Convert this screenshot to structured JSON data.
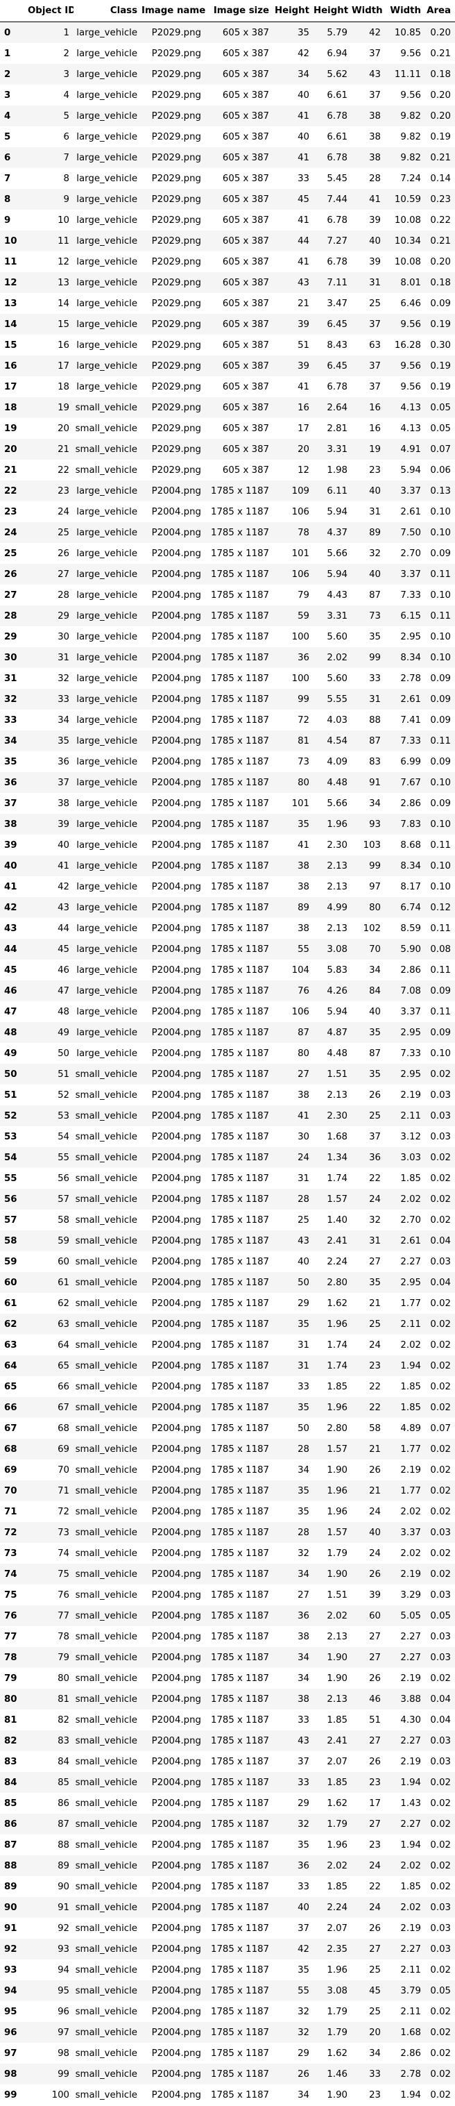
{
  "columns": [
    "",
    "Object ID",
    "Class",
    "Image name",
    "Image size",
    "Height",
    "Height",
    "Width",
    "Width",
    "Area"
  ],
  "rows": [
    [
      "0",
      "1",
      "large_vehicle",
      "P2029.png",
      "605 x 387",
      "35",
      "5.79",
      "42",
      "10.85",
      "0.20"
    ],
    [
      "1",
      "2",
      "large_vehicle",
      "P2029.png",
      "605 x 387",
      "42",
      "6.94",
      "37",
      "9.56",
      "0.21"
    ],
    [
      "2",
      "3",
      "large_vehicle",
      "P2029.png",
      "605 x 387",
      "34",
      "5.62",
      "43",
      "11.11",
      "0.18"
    ],
    [
      "3",
      "4",
      "large_vehicle",
      "P2029.png",
      "605 x 387",
      "40",
      "6.61",
      "37",
      "9.56",
      "0.20"
    ],
    [
      "4",
      "5",
      "large_vehicle",
      "P2029.png",
      "605 x 387",
      "41",
      "6.78",
      "38",
      "9.82",
      "0.20"
    ],
    [
      "5",
      "6",
      "large_vehicle",
      "P2029.png",
      "605 x 387",
      "40",
      "6.61",
      "38",
      "9.82",
      "0.19"
    ],
    [
      "6",
      "7",
      "large_vehicle",
      "P2029.png",
      "605 x 387",
      "41",
      "6.78",
      "38",
      "9.82",
      "0.21"
    ],
    [
      "7",
      "8",
      "large_vehicle",
      "P2029.png",
      "605 x 387",
      "33",
      "5.45",
      "28",
      "7.24",
      "0.14"
    ],
    [
      "8",
      "9",
      "large_vehicle",
      "P2029.png",
      "605 x 387",
      "45",
      "7.44",
      "41",
      "10.59",
      "0.23"
    ],
    [
      "9",
      "10",
      "large_vehicle",
      "P2029.png",
      "605 x 387",
      "41",
      "6.78",
      "39",
      "10.08",
      "0.22"
    ],
    [
      "10",
      "11",
      "large_vehicle",
      "P2029.png",
      "605 x 387",
      "44",
      "7.27",
      "40",
      "10.34",
      "0.21"
    ],
    [
      "11",
      "12",
      "large_vehicle",
      "P2029.png",
      "605 x 387",
      "41",
      "6.78",
      "39",
      "10.08",
      "0.20"
    ],
    [
      "12",
      "13",
      "large_vehicle",
      "P2029.png",
      "605 x 387",
      "43",
      "7.11",
      "31",
      "8.01",
      "0.18"
    ],
    [
      "13",
      "14",
      "large_vehicle",
      "P2029.png",
      "605 x 387",
      "21",
      "3.47",
      "25",
      "6.46",
      "0.09"
    ],
    [
      "14",
      "15",
      "large_vehicle",
      "P2029.png",
      "605 x 387",
      "39",
      "6.45",
      "37",
      "9.56",
      "0.19"
    ],
    [
      "15",
      "16",
      "large_vehicle",
      "P2029.png",
      "605 x 387",
      "51",
      "8.43",
      "63",
      "16.28",
      "0.30"
    ],
    [
      "16",
      "17",
      "large_vehicle",
      "P2029.png",
      "605 x 387",
      "39",
      "6.45",
      "37",
      "9.56",
      "0.19"
    ],
    [
      "17",
      "18",
      "large_vehicle",
      "P2029.png",
      "605 x 387",
      "41",
      "6.78",
      "37",
      "9.56",
      "0.19"
    ],
    [
      "18",
      "19",
      "small_vehicle",
      "P2029.png",
      "605 x 387",
      "16",
      "2.64",
      "16",
      "4.13",
      "0.05"
    ],
    [
      "19",
      "20",
      "small_vehicle",
      "P2029.png",
      "605 x 387",
      "17",
      "2.81",
      "16",
      "4.13",
      "0.05"
    ],
    [
      "20",
      "21",
      "small_vehicle",
      "P2029.png",
      "605 x 387",
      "20",
      "3.31",
      "19",
      "4.91",
      "0.07"
    ],
    [
      "21",
      "22",
      "small_vehicle",
      "P2029.png",
      "605 x 387",
      "12",
      "1.98",
      "23",
      "5.94",
      "0.06"
    ],
    [
      "22",
      "23",
      "large_vehicle",
      "P2004.png",
      "1785 x 1187",
      "109",
      "6.11",
      "40",
      "3.37",
      "0.13"
    ],
    [
      "23",
      "24",
      "large_vehicle",
      "P2004.png",
      "1785 x 1187",
      "106",
      "5.94",
      "31",
      "2.61",
      "0.10"
    ],
    [
      "24",
      "25",
      "large_vehicle",
      "P2004.png",
      "1785 x 1187",
      "78",
      "4.37",
      "89",
      "7.50",
      "0.10"
    ],
    [
      "25",
      "26",
      "large_vehicle",
      "P2004.png",
      "1785 x 1187",
      "101",
      "5.66",
      "32",
      "2.70",
      "0.09"
    ],
    [
      "26",
      "27",
      "large_vehicle",
      "P2004.png",
      "1785 x 1187",
      "106",
      "5.94",
      "40",
      "3.37",
      "0.11"
    ],
    [
      "27",
      "28",
      "large_vehicle",
      "P2004.png",
      "1785 x 1187",
      "79",
      "4.43",
      "87",
      "7.33",
      "0.10"
    ],
    [
      "28",
      "29",
      "large_vehicle",
      "P2004.png",
      "1785 x 1187",
      "59",
      "3.31",
      "73",
      "6.15",
      "0.11"
    ],
    [
      "29",
      "30",
      "large_vehicle",
      "P2004.png",
      "1785 x 1187",
      "100",
      "5.60",
      "35",
      "2.95",
      "0.10"
    ],
    [
      "30",
      "31",
      "large_vehicle",
      "P2004.png",
      "1785 x 1187",
      "36",
      "2.02",
      "99",
      "8.34",
      "0.10"
    ],
    [
      "31",
      "32",
      "large_vehicle",
      "P2004.png",
      "1785 x 1187",
      "100",
      "5.60",
      "33",
      "2.78",
      "0.09"
    ],
    [
      "32",
      "33",
      "large_vehicle",
      "P2004.png",
      "1785 x 1187",
      "99",
      "5.55",
      "31",
      "2.61",
      "0.09"
    ],
    [
      "33",
      "34",
      "large_vehicle",
      "P2004.png",
      "1785 x 1187",
      "72",
      "4.03",
      "88",
      "7.41",
      "0.09"
    ],
    [
      "34",
      "35",
      "large_vehicle",
      "P2004.png",
      "1785 x 1187",
      "81",
      "4.54",
      "87",
      "7.33",
      "0.11"
    ],
    [
      "35",
      "36",
      "large_vehicle",
      "P2004.png",
      "1785 x 1187",
      "73",
      "4.09",
      "83",
      "6.99",
      "0.09"
    ],
    [
      "36",
      "37",
      "large_vehicle",
      "P2004.png",
      "1785 x 1187",
      "80",
      "4.48",
      "91",
      "7.67",
      "0.10"
    ],
    [
      "37",
      "38",
      "large_vehicle",
      "P2004.png",
      "1785 x 1187",
      "101",
      "5.66",
      "34",
      "2.86",
      "0.09"
    ],
    [
      "38",
      "39",
      "large_vehicle",
      "P2004.png",
      "1785 x 1187",
      "35",
      "1.96",
      "93",
      "7.83",
      "0.10"
    ],
    [
      "39",
      "40",
      "large_vehicle",
      "P2004.png",
      "1785 x 1187",
      "41",
      "2.30",
      "103",
      "8.68",
      "0.11"
    ],
    [
      "40",
      "41",
      "large_vehicle",
      "P2004.png",
      "1785 x 1187",
      "38",
      "2.13",
      "99",
      "8.34",
      "0.10"
    ],
    [
      "41",
      "42",
      "large_vehicle",
      "P2004.png",
      "1785 x 1187",
      "38",
      "2.13",
      "97",
      "8.17",
      "0.10"
    ],
    [
      "42",
      "43",
      "large_vehicle",
      "P2004.png",
      "1785 x 1187",
      "89",
      "4.99",
      "80",
      "6.74",
      "0.12"
    ],
    [
      "43",
      "44",
      "large_vehicle",
      "P2004.png",
      "1785 x 1187",
      "38",
      "2.13",
      "102",
      "8.59",
      "0.11"
    ],
    [
      "44",
      "45",
      "large_vehicle",
      "P2004.png",
      "1785 x 1187",
      "55",
      "3.08",
      "70",
      "5.90",
      "0.08"
    ],
    [
      "45",
      "46",
      "large_vehicle",
      "P2004.png",
      "1785 x 1187",
      "104",
      "5.83",
      "34",
      "2.86",
      "0.11"
    ],
    [
      "46",
      "47",
      "large_vehicle",
      "P2004.png",
      "1785 x 1187",
      "76",
      "4.26",
      "84",
      "7.08",
      "0.09"
    ],
    [
      "47",
      "48",
      "large_vehicle",
      "P2004.png",
      "1785 x 1187",
      "106",
      "5.94",
      "40",
      "3.37",
      "0.11"
    ],
    [
      "48",
      "49",
      "large_vehicle",
      "P2004.png",
      "1785 x 1187",
      "87",
      "4.87",
      "35",
      "2.95",
      "0.09"
    ],
    [
      "49",
      "50",
      "large_vehicle",
      "P2004.png",
      "1785 x 1187",
      "80",
      "4.48",
      "87",
      "7.33",
      "0.10"
    ],
    [
      "50",
      "51",
      "small_vehicle",
      "P2004.png",
      "1785 x 1187",
      "27",
      "1.51",
      "35",
      "2.95",
      "0.02"
    ],
    [
      "51",
      "52",
      "small_vehicle",
      "P2004.png",
      "1785 x 1187",
      "38",
      "2.13",
      "26",
      "2.19",
      "0.03"
    ],
    [
      "52",
      "53",
      "small_vehicle",
      "P2004.png",
      "1785 x 1187",
      "41",
      "2.30",
      "25",
      "2.11",
      "0.03"
    ],
    [
      "53",
      "54",
      "small_vehicle",
      "P2004.png",
      "1785 x 1187",
      "30",
      "1.68",
      "37",
      "3.12",
      "0.03"
    ],
    [
      "54",
      "55",
      "small_vehicle",
      "P2004.png",
      "1785 x 1187",
      "24",
      "1.34",
      "36",
      "3.03",
      "0.02"
    ],
    [
      "55",
      "56",
      "small_vehicle",
      "P2004.png",
      "1785 x 1187",
      "31",
      "1.74",
      "22",
      "1.85",
      "0.02"
    ],
    [
      "56",
      "57",
      "small_vehicle",
      "P2004.png",
      "1785 x 1187",
      "28",
      "1.57",
      "24",
      "2.02",
      "0.02"
    ],
    [
      "57",
      "58",
      "small_vehicle",
      "P2004.png",
      "1785 x 1187",
      "25",
      "1.40",
      "32",
      "2.70",
      "0.02"
    ],
    [
      "58",
      "59",
      "small_vehicle",
      "P2004.png",
      "1785 x 1187",
      "43",
      "2.41",
      "31",
      "2.61",
      "0.04"
    ],
    [
      "59",
      "60",
      "small_vehicle",
      "P2004.png",
      "1785 x 1187",
      "40",
      "2.24",
      "27",
      "2.27",
      "0.03"
    ],
    [
      "60",
      "61",
      "small_vehicle",
      "P2004.png",
      "1785 x 1187",
      "50",
      "2.80",
      "35",
      "2.95",
      "0.04"
    ],
    [
      "61",
      "62",
      "small_vehicle",
      "P2004.png",
      "1785 x 1187",
      "29",
      "1.62",
      "21",
      "1.77",
      "0.02"
    ],
    [
      "62",
      "63",
      "small_vehicle",
      "P2004.png",
      "1785 x 1187",
      "35",
      "1.96",
      "25",
      "2.11",
      "0.02"
    ],
    [
      "63",
      "64",
      "small_vehicle",
      "P2004.png",
      "1785 x 1187",
      "31",
      "1.74",
      "24",
      "2.02",
      "0.02"
    ],
    [
      "64",
      "65",
      "small_vehicle",
      "P2004.png",
      "1785 x 1187",
      "31",
      "1.74",
      "23",
      "1.94",
      "0.02"
    ],
    [
      "65",
      "66",
      "small_vehicle",
      "P2004.png",
      "1785 x 1187",
      "33",
      "1.85",
      "22",
      "1.85",
      "0.02"
    ],
    [
      "66",
      "67",
      "small_vehicle",
      "P2004.png",
      "1785 x 1187",
      "35",
      "1.96",
      "22",
      "1.85",
      "0.02"
    ],
    [
      "67",
      "68",
      "small_vehicle",
      "P2004.png",
      "1785 x 1187",
      "50",
      "2.80",
      "58",
      "4.89",
      "0.07"
    ],
    [
      "68",
      "69",
      "small_vehicle",
      "P2004.png",
      "1785 x 1187",
      "28",
      "1.57",
      "21",
      "1.77",
      "0.02"
    ],
    [
      "69",
      "70",
      "small_vehicle",
      "P2004.png",
      "1785 x 1187",
      "34",
      "1.90",
      "26",
      "2.19",
      "0.02"
    ],
    [
      "70",
      "71",
      "small_vehicle",
      "P2004.png",
      "1785 x 1187",
      "35",
      "1.96",
      "21",
      "1.77",
      "0.02"
    ],
    [
      "71",
      "72",
      "small_vehicle",
      "P2004.png",
      "1785 x 1187",
      "35",
      "1.96",
      "24",
      "2.02",
      "0.02"
    ],
    [
      "72",
      "73",
      "small_vehicle",
      "P2004.png",
      "1785 x 1187",
      "28",
      "1.57",
      "40",
      "3.37",
      "0.03"
    ],
    [
      "73",
      "74",
      "small_vehicle",
      "P2004.png",
      "1785 x 1187",
      "32",
      "1.79",
      "24",
      "2.02",
      "0.02"
    ],
    [
      "74",
      "75",
      "small_vehicle",
      "P2004.png",
      "1785 x 1187",
      "34",
      "1.90",
      "26",
      "2.19",
      "0.02"
    ],
    [
      "75",
      "76",
      "small_vehicle",
      "P2004.png",
      "1785 x 1187",
      "27",
      "1.51",
      "39",
      "3.29",
      "0.03"
    ],
    [
      "76",
      "77",
      "small_vehicle",
      "P2004.png",
      "1785 x 1187",
      "36",
      "2.02",
      "60",
      "5.05",
      "0.05"
    ],
    [
      "77",
      "78",
      "small_vehicle",
      "P2004.png",
      "1785 x 1187",
      "38",
      "2.13",
      "27",
      "2.27",
      "0.03"
    ],
    [
      "78",
      "79",
      "small_vehicle",
      "P2004.png",
      "1785 x 1187",
      "34",
      "1.90",
      "27",
      "2.27",
      "0.03"
    ],
    [
      "79",
      "80",
      "small_vehicle",
      "P2004.png",
      "1785 x 1187",
      "34",
      "1.90",
      "26",
      "2.19",
      "0.02"
    ],
    [
      "80",
      "81",
      "small_vehicle",
      "P2004.png",
      "1785 x 1187",
      "38",
      "2.13",
      "46",
      "3.88",
      "0.04"
    ],
    [
      "81",
      "82",
      "small_vehicle",
      "P2004.png",
      "1785 x 1187",
      "33",
      "1.85",
      "51",
      "4.30",
      "0.04"
    ],
    [
      "82",
      "83",
      "small_vehicle",
      "P2004.png",
      "1785 x 1187",
      "43",
      "2.41",
      "27",
      "2.27",
      "0.03"
    ],
    [
      "83",
      "84",
      "small_vehicle",
      "P2004.png",
      "1785 x 1187",
      "37",
      "2.07",
      "26",
      "2.19",
      "0.03"
    ],
    [
      "84",
      "85",
      "small_vehicle",
      "P2004.png",
      "1785 x 1187",
      "33",
      "1.85",
      "23",
      "1.94",
      "0.02"
    ],
    [
      "85",
      "86",
      "small_vehicle",
      "P2004.png",
      "1785 x 1187",
      "29",
      "1.62",
      "17",
      "1.43",
      "0.02"
    ],
    [
      "86",
      "87",
      "small_vehicle",
      "P2004.png",
      "1785 x 1187",
      "32",
      "1.79",
      "27",
      "2.27",
      "0.02"
    ],
    [
      "87",
      "88",
      "small_vehicle",
      "P2004.png",
      "1785 x 1187",
      "35",
      "1.96",
      "23",
      "1.94",
      "0.02"
    ],
    [
      "88",
      "89",
      "small_vehicle",
      "P2004.png",
      "1785 x 1187",
      "36",
      "2.02",
      "24",
      "2.02",
      "0.02"
    ],
    [
      "89",
      "90",
      "small_vehicle",
      "P2004.png",
      "1785 x 1187",
      "33",
      "1.85",
      "22",
      "1.85",
      "0.02"
    ],
    [
      "90",
      "91",
      "small_vehicle",
      "P2004.png",
      "1785 x 1187",
      "40",
      "2.24",
      "24",
      "2.02",
      "0.03"
    ],
    [
      "91",
      "92",
      "small_vehicle",
      "P2004.png",
      "1785 x 1187",
      "37",
      "2.07",
      "26",
      "2.19",
      "0.03"
    ],
    [
      "92",
      "93",
      "small_vehicle",
      "P2004.png",
      "1785 x 1187",
      "42",
      "2.35",
      "27",
      "2.27",
      "0.03"
    ],
    [
      "93",
      "94",
      "small_vehicle",
      "P2004.png",
      "1785 x 1187",
      "35",
      "1.96",
      "25",
      "2.11",
      "0.02"
    ],
    [
      "94",
      "95",
      "small_vehicle",
      "P2004.png",
      "1785 x 1187",
      "55",
      "3.08",
      "45",
      "3.79",
      "0.05"
    ],
    [
      "95",
      "96",
      "small_vehicle",
      "P2004.png",
      "1785 x 1187",
      "32",
      "1.79",
      "25",
      "2.11",
      "0.02"
    ],
    [
      "96",
      "97",
      "small_vehicle",
      "P2004.png",
      "1785 x 1187",
      "32",
      "1.79",
      "20",
      "1.68",
      "0.02"
    ],
    [
      "97",
      "98",
      "small_vehicle",
      "P2004.png",
      "1785 x 1187",
      "29",
      "1.62",
      "34",
      "2.86",
      "0.02"
    ],
    [
      "98",
      "99",
      "small_vehicle",
      "P2004.png",
      "1785 x 1187",
      "26",
      "1.46",
      "33",
      "2.78",
      "0.02"
    ],
    [
      "99",
      "100",
      "small_vehicle",
      "P2004.png",
      "1785 x 1187",
      "34",
      "1.90",
      "23",
      "1.94",
      "0.02"
    ]
  ]
}
